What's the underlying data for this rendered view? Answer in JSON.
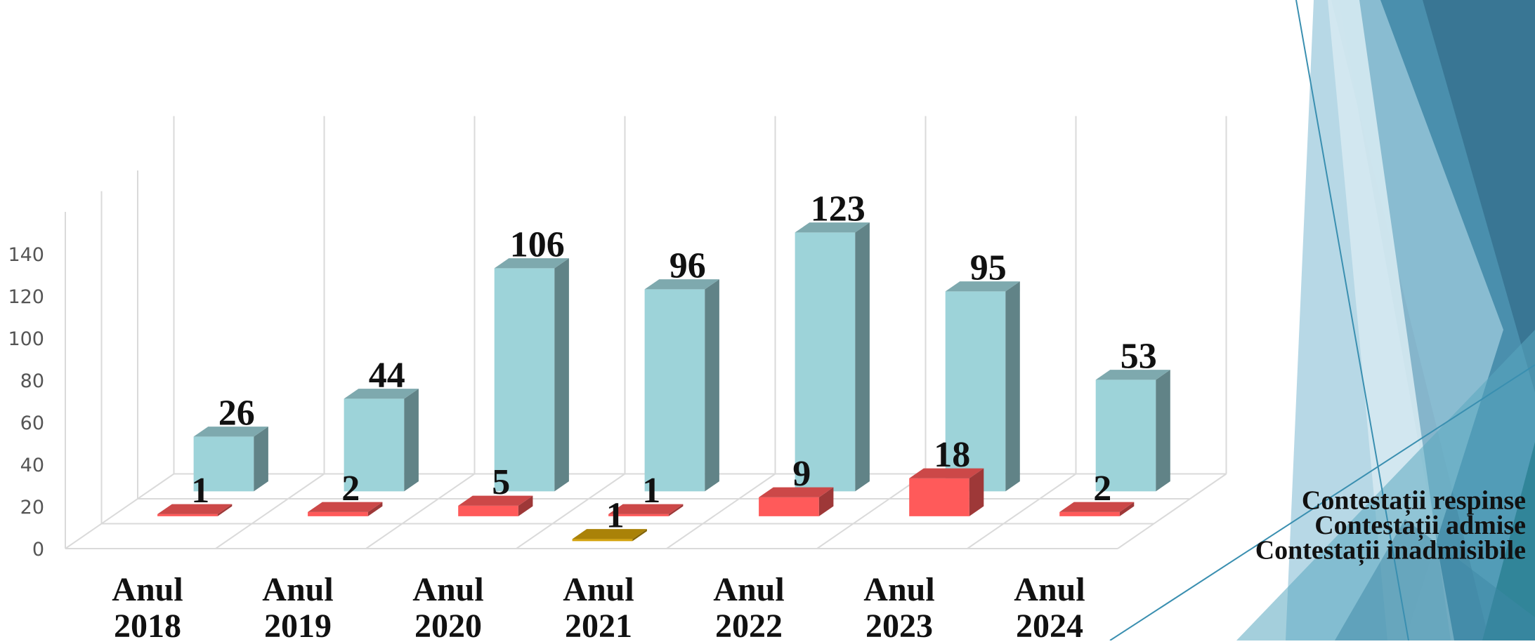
{
  "chart_data": {
    "type": "bar",
    "categories": [
      "Anul 2018",
      "Anul 2019",
      "Anul 2020",
      "Anul 2021",
      "Anul 2022",
      "Anul 2023",
      "Anul 2024"
    ],
    "category_lines": [
      [
        "Anul",
        "2018"
      ],
      [
        "Anul",
        "2019"
      ],
      [
        "Anul",
        "2020"
      ],
      [
        "Anul",
        "2021"
      ],
      [
        "Anul",
        "2022"
      ],
      [
        "Anul",
        "2023"
      ],
      [
        "Anul",
        "2024"
      ]
    ],
    "series": [
      {
        "name": "Contestații inadmisibile",
        "values": [
          null,
          null,
          null,
          1,
          null,
          null,
          null
        ],
        "color": "#D4A20A"
      },
      {
        "name": "Contestații admise",
        "values": [
          1,
          2,
          5,
          1,
          9,
          18,
          2
        ],
        "color": "#FF5A5A"
      },
      {
        "name": "Contestații respinse",
        "values": [
          26,
          44,
          106,
          96,
          123,
          95,
          53
        ],
        "color": "#9DD3D9"
      }
    ],
    "y_ticks": [
      "0",
      "20",
      "40",
      "60",
      "80",
      "100",
      "120",
      "140"
    ],
    "ylim": [
      0,
      140
    ],
    "title": "",
    "xlabel": "",
    "ylabel": "",
    "grid": true,
    "style": "3d-column"
  }
}
